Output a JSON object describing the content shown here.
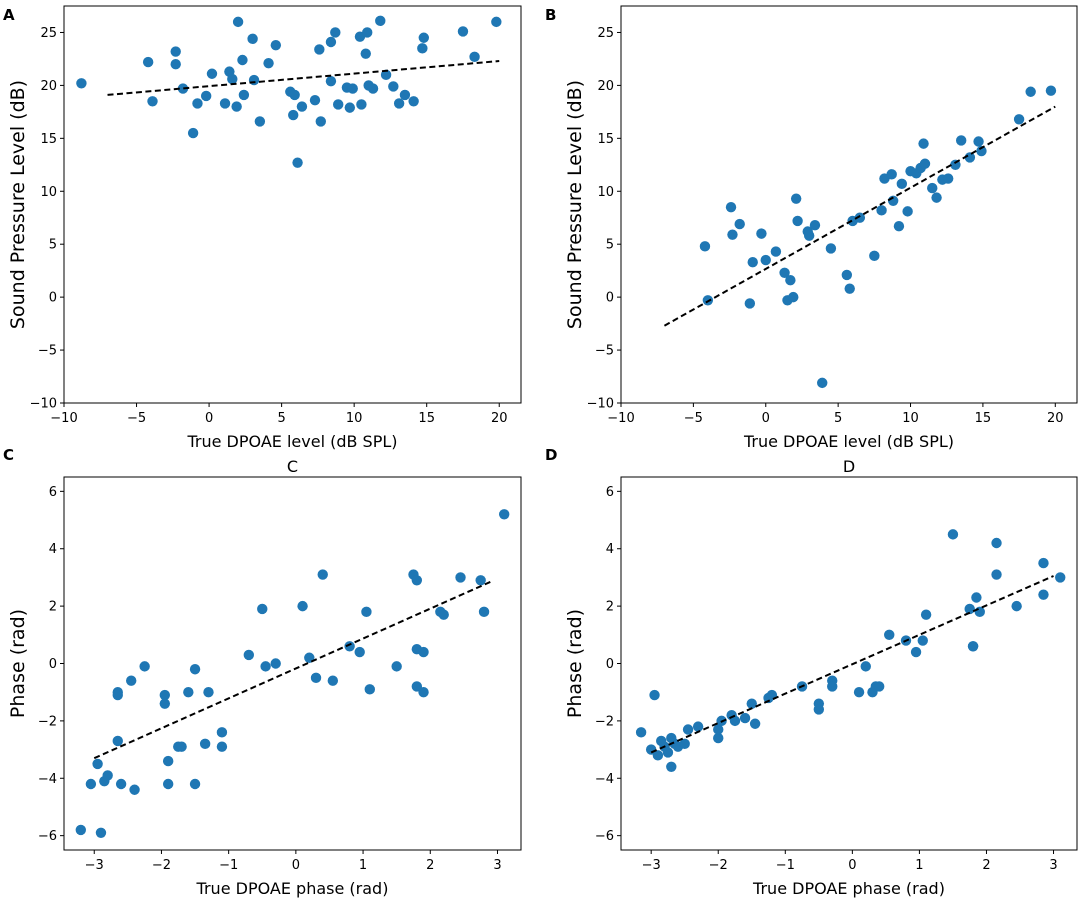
{
  "chart_data": [
    {
      "panel": "A",
      "title": "",
      "type": "scatter",
      "xlabel": "True DPOAE level (dB SPL)",
      "ylabel": "Sound Pressure Level (dB)",
      "xlim": [
        -10,
        21.5
      ],
      "ylim": [
        -10,
        27.5
      ],
      "xticks": [
        -10,
        -5,
        0,
        5,
        10,
        15,
        20
      ],
      "yticks": [
        -10,
        -5,
        0,
        5,
        10,
        15,
        20,
        25
      ],
      "xtick_labels": [
        "−10",
        "−5",
        "0",
        "5",
        "10",
        "15",
        "20"
      ],
      "ytick_labels": [
        "−10",
        "−5",
        "0",
        "5",
        "10",
        "15",
        "20",
        "25"
      ],
      "marker_color": "#1f77b4",
      "fit_line": {
        "x": [
          -7,
          20
        ],
        "y": [
          19.1,
          22.3
        ]
      },
      "points": [
        [
          -8.8,
          20.2
        ],
        [
          -4.2,
          22.2
        ],
        [
          -3.9,
          18.5
        ],
        [
          -2.3,
          23.2
        ],
        [
          -2.3,
          22.0
        ],
        [
          -1.8,
          19.7
        ],
        [
          -1.1,
          15.5
        ],
        [
          -0.8,
          18.3
        ],
        [
          -0.2,
          19.0
        ],
        [
          0.2,
          21.1
        ],
        [
          1.1,
          18.3
        ],
        [
          1.4,
          21.3
        ],
        [
          1.6,
          20.6
        ],
        [
          1.9,
          18.0
        ],
        [
          2.0,
          26.0
        ],
        [
          2.3,
          22.4
        ],
        [
          2.4,
          19.1
        ],
        [
          3.0,
          24.4
        ],
        [
          3.1,
          20.5
        ],
        [
          3.5,
          16.6
        ],
        [
          4.1,
          22.1
        ],
        [
          4.6,
          23.8
        ],
        [
          5.6,
          19.4
        ],
        [
          5.8,
          17.2
        ],
        [
          5.9,
          19.1
        ],
        [
          6.1,
          12.7
        ],
        [
          6.4,
          18.0
        ],
        [
          7.3,
          18.6
        ],
        [
          7.6,
          23.4
        ],
        [
          7.7,
          16.6
        ],
        [
          8.4,
          24.1
        ],
        [
          8.4,
          20.4
        ],
        [
          8.7,
          25.0
        ],
        [
          8.9,
          18.2
        ],
        [
          9.5,
          19.8
        ],
        [
          9.7,
          17.9
        ],
        [
          9.9,
          19.7
        ],
        [
          10.4,
          24.6
        ],
        [
          10.5,
          18.2
        ],
        [
          10.8,
          23.0
        ],
        [
          10.9,
          25.0
        ],
        [
          11.0,
          20.0
        ],
        [
          11.3,
          19.7
        ],
        [
          11.8,
          26.1
        ],
        [
          12.2,
          21.0
        ],
        [
          12.7,
          19.9
        ],
        [
          13.1,
          18.3
        ],
        [
          13.5,
          19.1
        ],
        [
          14.1,
          18.5
        ],
        [
          14.7,
          23.5
        ],
        [
          14.8,
          24.5
        ],
        [
          17.5,
          25.1
        ],
        [
          18.3,
          22.7
        ],
        [
          19.8,
          26.0
        ]
      ]
    },
    {
      "panel": "B",
      "title": "",
      "type": "scatter",
      "xlabel": "True DPOAE level (dB SPL)",
      "ylabel": "Sound Pressure Level (dB)",
      "xlim": [
        -10,
        21.5
      ],
      "ylim": [
        -10,
        27.5
      ],
      "xticks": [
        -10,
        -5,
        0,
        5,
        10,
        15,
        20
      ],
      "yticks": [
        -10,
        -5,
        0,
        5,
        10,
        15,
        20,
        25
      ],
      "xtick_labels": [
        "−10",
        "−5",
        "0",
        "5",
        "10",
        "15",
        "20"
      ],
      "ytick_labels": [
        "−10",
        "−5",
        "0",
        "5",
        "10",
        "15",
        "20",
        "25"
      ],
      "marker_color": "#1f77b4",
      "fit_line": {
        "x": [
          -7,
          20
        ],
        "y": [
          -2.7,
          18.0
        ]
      },
      "points": [
        [
          -4.2,
          4.8
        ],
        [
          -4.0,
          -0.3
        ],
        [
          -2.4,
          8.5
        ],
        [
          -2.3,
          5.9
        ],
        [
          -1.8,
          6.9
        ],
        [
          -1.1,
          -0.6
        ],
        [
          -0.9,
          3.3
        ],
        [
          -0.3,
          6.0
        ],
        [
          0.0,
          3.5
        ],
        [
          0.7,
          4.3
        ],
        [
          1.3,
          2.3
        ],
        [
          1.5,
          -0.3
        ],
        [
          1.7,
          1.6
        ],
        [
          1.9,
          0.0
        ],
        [
          2.1,
          9.3
        ],
        [
          2.2,
          7.2
        ],
        [
          2.9,
          6.2
        ],
        [
          3.0,
          5.8
        ],
        [
          3.4,
          6.8
        ],
        [
          3.9,
          -8.1
        ],
        [
          4.5,
          4.6
        ],
        [
          5.6,
          2.1
        ],
        [
          5.8,
          0.8
        ],
        [
          6.0,
          7.2
        ],
        [
          6.5,
          7.5
        ],
        [
          7.5,
          3.9
        ],
        [
          8.0,
          8.2
        ],
        [
          8.2,
          11.2
        ],
        [
          8.7,
          11.6
        ],
        [
          8.8,
          9.1
        ],
        [
          9.2,
          6.7
        ],
        [
          9.4,
          10.7
        ],
        [
          9.8,
          8.1
        ],
        [
          10.0,
          11.9
        ],
        [
          10.4,
          11.7
        ],
        [
          10.7,
          12.2
        ],
        [
          10.9,
          14.5
        ],
        [
          11.0,
          12.6
        ],
        [
          11.5,
          10.3
        ],
        [
          11.8,
          9.4
        ],
        [
          12.2,
          11.1
        ],
        [
          12.6,
          11.2
        ],
        [
          13.1,
          12.5
        ],
        [
          13.5,
          14.8
        ],
        [
          14.1,
          13.2
        ],
        [
          14.7,
          14.7
        ],
        [
          14.9,
          13.8
        ],
        [
          17.5,
          16.8
        ],
        [
          18.3,
          19.4
        ],
        [
          19.7,
          19.5
        ]
      ]
    },
    {
      "panel": "C",
      "title": "C",
      "type": "scatter",
      "xlabel": "True DPOAE phase (rad)",
      "ylabel": "Phase (rad)",
      "xlim": [
        -3.45,
        3.35
      ],
      "ylim": [
        -6.5,
        6.5
      ],
      "xticks": [
        -3,
        -2,
        -1,
        0,
        1,
        2,
        3
      ],
      "yticks": [
        -6,
        -4,
        -2,
        0,
        2,
        4,
        6
      ],
      "xtick_labels": [
        "−3",
        "−2",
        "−1",
        "0",
        "1",
        "2",
        "3"
      ],
      "ytick_labels": [
        "−6",
        "−4",
        "−2",
        "0",
        "2",
        "4",
        "6"
      ],
      "marker_color": "#1f77b4",
      "fit_line": {
        "x": [
          -3.0,
          2.9
        ],
        "y": [
          -3.3,
          2.85
        ]
      },
      "points": [
        [
          -3.2,
          -5.8
        ],
        [
          -3.05,
          -4.2
        ],
        [
          -2.95,
          -3.5
        ],
        [
          -2.9,
          -5.9
        ],
        [
          -2.85,
          -4.1
        ],
        [
          -2.8,
          -3.9
        ],
        [
          -2.65,
          -1.0
        ],
        [
          -2.65,
          -1.1
        ],
        [
          -2.65,
          -2.7
        ],
        [
          -2.6,
          -4.2
        ],
        [
          -2.45,
          -0.6
        ],
        [
          -2.4,
          -4.4
        ],
        [
          -2.25,
          -0.1
        ],
        [
          -1.95,
          -1.1
        ],
        [
          -1.95,
          -1.4
        ],
        [
          -1.9,
          -4.2
        ],
        [
          -1.9,
          -3.4
        ],
        [
          -1.75,
          -2.9
        ],
        [
          -1.7,
          -2.9
        ],
        [
          -1.6,
          -1.0
        ],
        [
          -1.5,
          -4.2
        ],
        [
          -1.5,
          -0.2
        ],
        [
          -1.35,
          -2.8
        ],
        [
          -1.3,
          -1.0
        ],
        [
          -1.1,
          -2.9
        ],
        [
          -1.1,
          -2.4
        ],
        [
          -0.7,
          0.3
        ],
        [
          -0.5,
          1.9
        ],
        [
          -0.45,
          -0.1
        ],
        [
          -0.3,
          0.0
        ],
        [
          0.1,
          2.0
        ],
        [
          0.2,
          0.2
        ],
        [
          0.3,
          -0.5
        ],
        [
          0.4,
          3.1
        ],
        [
          0.55,
          -0.6
        ],
        [
          0.8,
          0.6
        ],
        [
          0.95,
          0.4
        ],
        [
          1.05,
          1.8
        ],
        [
          1.1,
          -0.9
        ],
        [
          1.5,
          -0.1
        ],
        [
          1.75,
          3.1
        ],
        [
          1.8,
          2.9
        ],
        [
          1.8,
          -0.8
        ],
        [
          1.8,
          0.5
        ],
        [
          1.9,
          0.4
        ],
        [
          1.9,
          -1.0
        ],
        [
          2.15,
          1.8
        ],
        [
          2.2,
          1.7
        ],
        [
          2.45,
          3.0
        ],
        [
          2.75,
          2.9
        ],
        [
          2.8,
          1.8
        ],
        [
          3.1,
          5.2
        ]
      ]
    },
    {
      "panel": "D",
      "title": "D",
      "type": "scatter",
      "xlabel": "True DPOAE phase (rad)",
      "ylabel": "Phase (rad)",
      "xlim": [
        -3.45,
        3.35
      ],
      "ylim": [
        -6.5,
        6.5
      ],
      "xticks": [
        -3,
        -2,
        -1,
        0,
        1,
        2,
        3
      ],
      "yticks": [
        -6,
        -4,
        -2,
        0,
        2,
        4,
        6
      ],
      "xtick_labels": [
        "−3",
        "−2",
        "−1",
        "0",
        "1",
        "2",
        "3"
      ],
      "ytick_labels": [
        "−6",
        "−4",
        "−2",
        "0",
        "2",
        "4",
        "6"
      ],
      "marker_color": "#1f77b4",
      "fit_line": {
        "x": [
          -3.0,
          3.0
        ],
        "y": [
          -3.1,
          3.05
        ]
      },
      "points": [
        [
          -3.15,
          -2.4
        ],
        [
          -3.0,
          -3.0
        ],
        [
          -2.95,
          -1.1
        ],
        [
          -2.9,
          -3.2
        ],
        [
          -2.85,
          -2.7
        ],
        [
          -2.8,
          -2.9
        ],
        [
          -2.75,
          -3.1
        ],
        [
          -2.7,
          -2.6
        ],
        [
          -2.7,
          -3.6
        ],
        [
          -2.65,
          -2.8
        ],
        [
          -2.6,
          -2.9
        ],
        [
          -2.5,
          -2.8
        ],
        [
          -2.45,
          -2.3
        ],
        [
          -2.3,
          -2.2
        ],
        [
          -2.0,
          -2.6
        ],
        [
          -2.0,
          -2.3
        ],
        [
          -1.95,
          -2.0
        ],
        [
          -1.8,
          -1.8
        ],
        [
          -1.75,
          -2.0
        ],
        [
          -1.6,
          -1.9
        ],
        [
          -1.5,
          -1.4
        ],
        [
          -1.45,
          -2.1
        ],
        [
          -1.25,
          -1.2
        ],
        [
          -1.2,
          -1.1
        ],
        [
          -0.75,
          -0.8
        ],
        [
          -0.5,
          -1.4
        ],
        [
          -0.5,
          -1.6
        ],
        [
          -0.3,
          -0.6
        ],
        [
          -0.3,
          -0.8
        ],
        [
          0.1,
          -1.0
        ],
        [
          0.2,
          -0.1
        ],
        [
          0.3,
          -1.0
        ],
        [
          0.35,
          -0.8
        ],
        [
          0.4,
          -0.8
        ],
        [
          0.55,
          1.0
        ],
        [
          0.8,
          0.8
        ],
        [
          0.95,
          0.4
        ],
        [
          1.05,
          0.8
        ],
        [
          1.1,
          1.7
        ],
        [
          1.5,
          4.5
        ],
        [
          1.75,
          1.9
        ],
        [
          1.8,
          0.6
        ],
        [
          1.8,
          0.6
        ],
        [
          1.85,
          2.3
        ],
        [
          1.9,
          1.8
        ],
        [
          2.15,
          3.1
        ],
        [
          2.15,
          4.2
        ],
        [
          2.45,
          2.0
        ],
        [
          2.85,
          2.4
        ],
        [
          2.85,
          3.5
        ],
        [
          3.1,
          3.0
        ]
      ]
    }
  ]
}
